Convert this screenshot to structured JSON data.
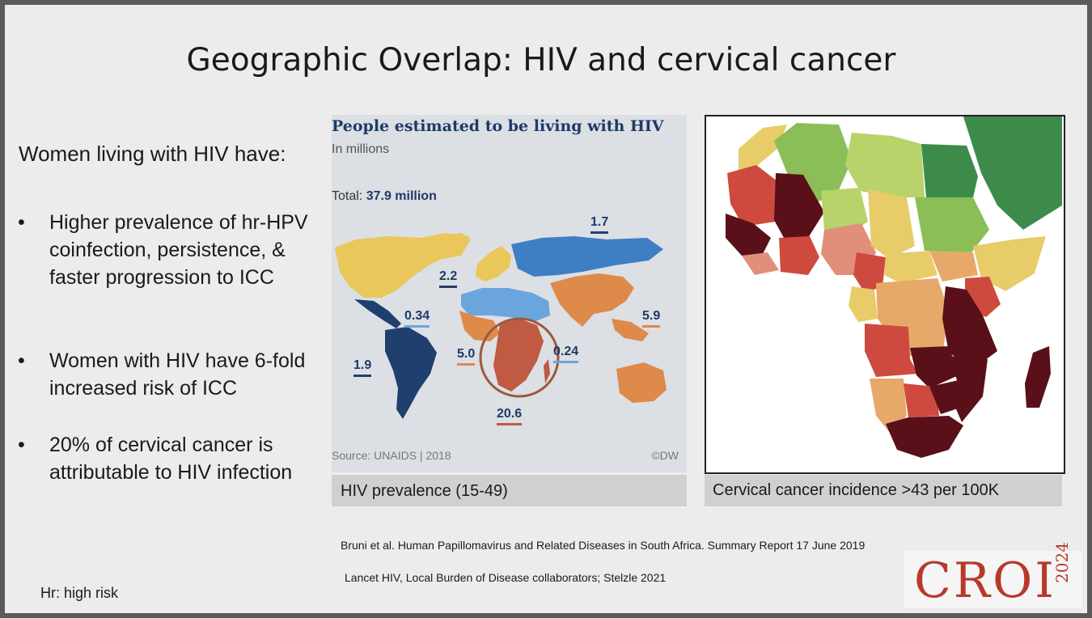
{
  "slide": {
    "title": "Geographic Overlap: HIV and cervical cancer",
    "intro": "Women living with HIV have:",
    "bullets": [
      {
        "marker": "•",
        "text": "Higher prevalence of hr-HPV coinfection, persistence, & faster progression to ICC"
      },
      {
        "marker": "•",
        "text": "Women with HIV have 6-fold increased risk of ICC"
      },
      {
        "marker": "•",
        "text": "20% of cervical cancer is attributable to HIV infection"
      }
    ],
    "footnote": "Hr: high risk"
  },
  "hiv_map": {
    "title": "People estimated to be living with HIV",
    "subtitle": "In millions",
    "total_label": "Total:",
    "total_value": "37.9 million",
    "source": "Source: UNAIDS | 2018",
    "credit": "©DW",
    "caption": "HIV prevalence (15-49)",
    "colors": {
      "yellow": "#e9c75a",
      "lightblue": "#6aa6dd",
      "blue": "#3e7fc4",
      "navy": "#1f3f6e",
      "orange": "#dd8a4a",
      "red": "#c05a43"
    },
    "regions": [
      {
        "label": "1.7",
        "region": "Eastern Europe & Central Asia",
        "underline": "#1f3f6e"
      },
      {
        "label": "2.2",
        "region": "Western & Central Europe and North America",
        "underline": "#1f3f6e"
      },
      {
        "label": "0.34",
        "region": "Caribbean",
        "underline": "#6aa6dd"
      },
      {
        "label": "1.9",
        "region": "Latin America",
        "underline": "#1f3f6e"
      },
      {
        "label": "5.0",
        "region": "Western & Central Africa",
        "underline": "#dd8a4a"
      },
      {
        "label": "0.24",
        "region": "Middle East & North Africa",
        "underline": "#6aa6dd"
      },
      {
        "label": "5.9",
        "region": "Asia & Pacific",
        "underline": "#dd8a4a"
      },
      {
        "label": "20.6",
        "region": "Eastern & Southern Africa",
        "underline": "#c05a43"
      }
    ]
  },
  "cc_map": {
    "caption": "Cervical cancer incidence >43 per 100K",
    "colors": {
      "darkgreen": "#3d8b4a",
      "green": "#8cbe58",
      "lightgreen": "#b8d36a",
      "yellow": "#e8cc6a",
      "orange": "#e7a96a",
      "salmon": "#e0907a",
      "red": "#cf4a3e",
      "maroon": "#5a1018"
    }
  },
  "references": [
    "Bruni et al. Human Papillomavirus and Related Diseases in South Africa. Summary Report 17 June 2019",
    "Lancet HIV, Local Burden of Disease collaborators; Stelzle 2021"
  ],
  "logo": {
    "word": "CROI",
    "year": "2024"
  }
}
